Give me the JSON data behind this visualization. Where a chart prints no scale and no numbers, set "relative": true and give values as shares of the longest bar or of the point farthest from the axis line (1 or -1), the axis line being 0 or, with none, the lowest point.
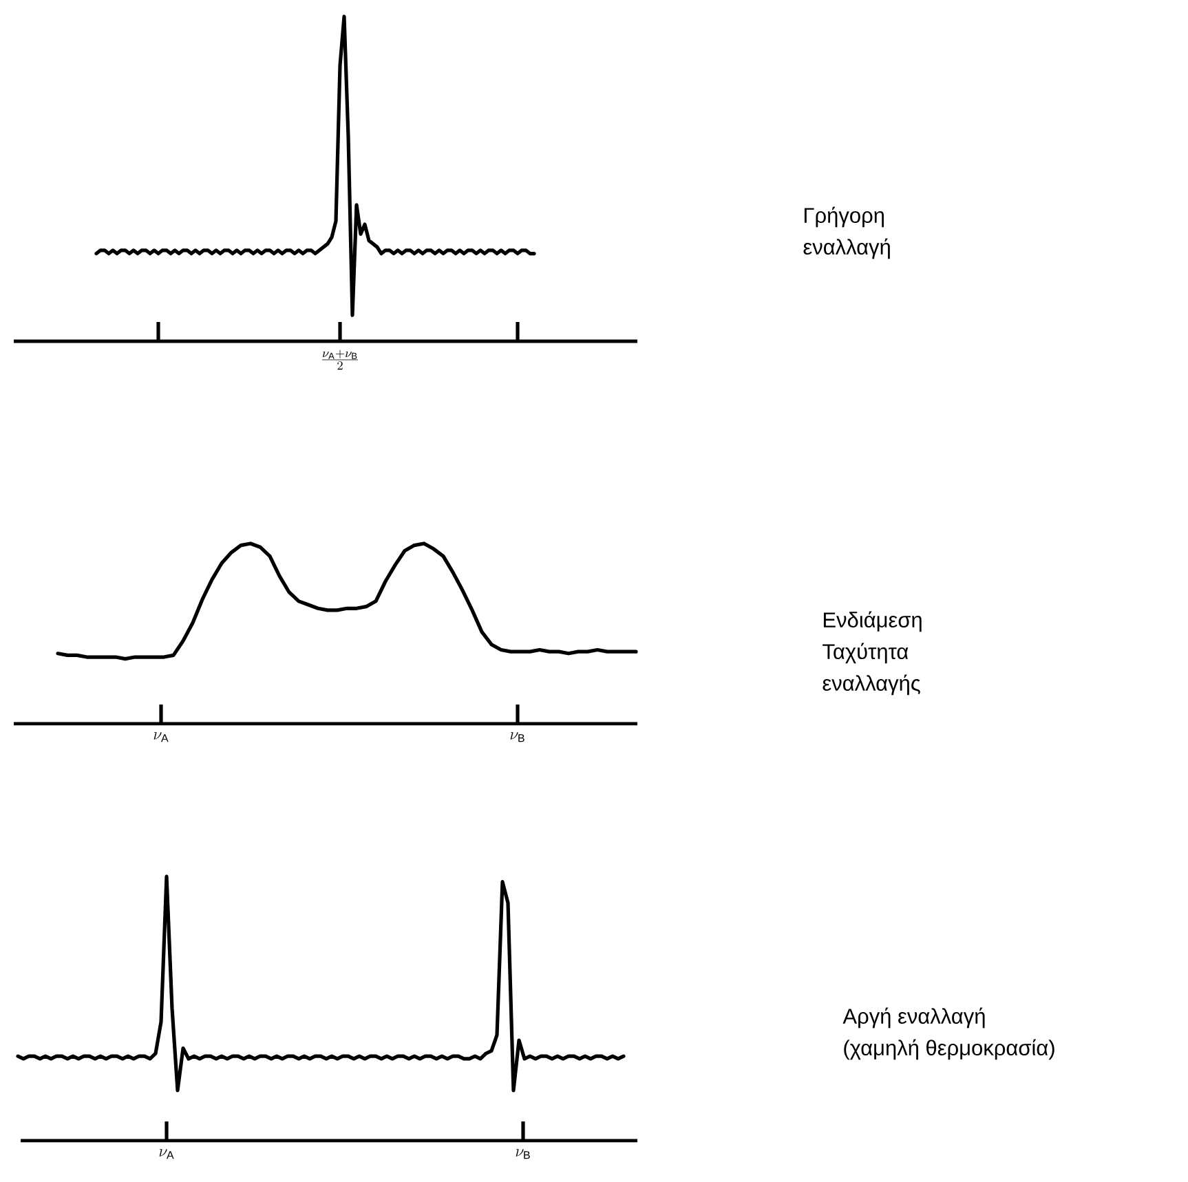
{
  "chart_data": [
    {
      "type": "line",
      "relative": true,
      "color": "#000000",
      "categories": [
        null,
        null,
        null,
        null,
        null,
        null,
        null,
        null,
        null,
        null,
        null,
        null,
        null,
        null,
        null,
        null,
        null,
        null,
        null,
        null,
        null,
        null,
        null,
        null,
        null,
        null,
        null,
        null,
        null,
        null,
        null,
        null,
        null,
        null,
        null,
        null,
        null,
        null,
        null,
        null,
        null,
        null,
        null,
        null,
        null,
        null,
        null,
        null,
        null,
        null,
        null,
        null,
        null,
        null,
        null,
        null,
        null,
        null,
        null,
        null,
        null,
        null,
        null,
        null,
        null,
        null,
        null,
        null,
        null,
        null,
        null,
        null,
        null,
        null,
        null,
        null,
        null,
        null,
        null,
        null,
        null,
        null,
        null,
        null,
        null,
        null,
        null,
        null,
        null,
        null,
        null,
        null,
        null,
        null,
        null,
        null,
        null,
        null,
        null,
        null,
        null,
        null,
        null,
        null,
        null,
        null,
        null
      ],
      "values": [
        0.27,
        0.28,
        0.28,
        0.27,
        0.28,
        0.27,
        0.28,
        0.28,
        0.27,
        0.28,
        0.27,
        0.28,
        0.28,
        0.27,
        0.28,
        0.27,
        0.28,
        0.28,
        0.27,
        0.28,
        0.27,
        0.28,
        0.28,
        0.27,
        0.28,
        0.27,
        0.28,
        0.28,
        0.27,
        0.28,
        0.27,
        0.28,
        0.28,
        0.27,
        0.28,
        0.27,
        0.28,
        0.28,
        0.27,
        0.28,
        0.27,
        0.28,
        0.28,
        0.27,
        0.28,
        0.27,
        0.28,
        0.28,
        0.27,
        0.28,
        0.27,
        0.28,
        0.28,
        0.27,
        0.28,
        0.29,
        0.3,
        0.32,
        0.37,
        0.85,
        1.0,
        0.63,
        0.08,
        0.42,
        0.33,
        0.36,
        0.31,
        0.3,
        0.29,
        0.27,
        0.28,
        0.28,
        0.27,
        0.28,
        0.27,
        0.28,
        0.28,
        0.27,
        0.28,
        0.27,
        0.28,
        0.28,
        0.27,
        0.28,
        0.27,
        0.28,
        0.28,
        0.27,
        0.28,
        0.27,
        0.28,
        0.28,
        0.27,
        0.28,
        0.27,
        0.28,
        0.28,
        0.27,
        0.28,
        0.27,
        0.28,
        0.28,
        0.27,
        0.28,
        0.28,
        0.27,
        0.27
      ],
      "annotations": [
        "\\frac{\\nu_{\\mathrm{A}} + \\nu_{\\mathrm{B}}}{2}",
        "Γρήγορη",
        "εναλλαγή"
      ]
    },
    {
      "type": "line",
      "relative": true,
      "color": "#000000",
      "categories": [
        null,
        null,
        null,
        null,
        null,
        null,
        null,
        null,
        null,
        null,
        null,
        null,
        null,
        null,
        null,
        null,
        null,
        null,
        null,
        null,
        null,
        null,
        null,
        null,
        null,
        null,
        null,
        null,
        null,
        null,
        null,
        null,
        null,
        null,
        null,
        null,
        null,
        null,
        null,
        null,
        null,
        null,
        null,
        null,
        null,
        null,
        null,
        null,
        null,
        null,
        null,
        null,
        null,
        null,
        null,
        null,
        null,
        null,
        null,
        null,
        null
      ],
      "values": [
        0.39,
        0.38,
        0.38,
        0.37,
        0.37,
        0.37,
        0.37,
        0.36,
        0.37,
        0.37,
        0.37,
        0.37,
        0.38,
        0.46,
        0.56,
        0.69,
        0.8,
        0.89,
        0.95,
        0.99,
        1.0,
        0.98,
        0.93,
        0.82,
        0.73,
        0.68,
        0.66,
        0.64,
        0.63,
        0.63,
        0.64,
        0.64,
        0.65,
        0.68,
        0.79,
        0.88,
        0.96,
        0.99,
        1.0,
        0.97,
        0.93,
        0.84,
        0.74,
        0.63,
        0.51,
        0.44,
        0.41,
        0.4,
        0.4,
        0.4,
        0.41,
        0.4,
        0.4,
        0.39,
        0.4,
        0.4,
        0.41,
        0.4,
        0.4,
        0.4,
        0.4
      ],
      "annotations": [
        "\\nu_{\\mathrm{A}}",
        "\\nu_{\\mathrm{B}}",
        "Ενδιάμεση",
        "Ταχύτητα",
        "εναλλαγής"
      ]
    },
    {
      "type": "line",
      "relative": true,
      "color": "#000000",
      "categories": [
        null,
        null,
        null,
        null,
        null,
        null,
        null,
        null,
        null,
        null,
        null,
        null,
        null,
        null,
        null,
        null,
        null,
        null,
        null,
        null,
        null,
        null,
        null,
        null,
        null,
        null,
        null,
        null,
        null,
        null,
        null,
        null,
        null,
        null,
        null,
        null,
        null,
        null,
        null,
        null,
        null,
        null,
        null,
        null,
        null,
        null,
        null,
        null,
        null,
        null,
        null,
        null,
        null,
        null,
        null,
        null,
        null,
        null,
        null,
        null,
        null,
        null,
        null,
        null,
        null,
        null,
        null,
        null,
        null,
        null,
        null,
        null,
        null,
        null,
        null,
        null,
        null,
        null,
        null,
        null,
        null,
        null,
        null,
        null,
        null,
        null,
        null,
        null,
        null,
        null,
        null,
        null,
        null,
        null,
        null,
        null,
        null,
        null,
        null,
        null,
        null,
        null,
        null,
        null,
        null,
        null,
        null,
        null,
        null,
        null,
        null
      ],
      "values": [
        0.32,
        0.31,
        0.32,
        0.32,
        0.31,
        0.32,
        0.31,
        0.32,
        0.32,
        0.31,
        0.32,
        0.31,
        0.32,
        0.32,
        0.31,
        0.32,
        0.31,
        0.32,
        0.32,
        0.31,
        0.32,
        0.31,
        0.32,
        0.32,
        0.31,
        0.33,
        0.45,
        1.0,
        0.5,
        0.19,
        0.35,
        0.31,
        0.32,
        0.31,
        0.32,
        0.32,
        0.31,
        0.32,
        0.31,
        0.32,
        0.32,
        0.31,
        0.32,
        0.31,
        0.32,
        0.32,
        0.31,
        0.32,
        0.31,
        0.32,
        0.32,
        0.31,
        0.32,
        0.31,
        0.32,
        0.32,
        0.31,
        0.32,
        0.31,
        0.32,
        0.32,
        0.31,
        0.32,
        0.31,
        0.32,
        0.32,
        0.31,
        0.32,
        0.31,
        0.32,
        0.32,
        0.31,
        0.32,
        0.31,
        0.32,
        0.32,
        0.31,
        0.32,
        0.31,
        0.32,
        0.32,
        0.31,
        0.31,
        0.32,
        0.31,
        0.33,
        0.34,
        0.4,
        0.98,
        0.9,
        0.19,
        0.38,
        0.31,
        0.32,
        0.31,
        0.32,
        0.32,
        0.31,
        0.32,
        0.31,
        0.32,
        0.32,
        0.31,
        0.32,
        0.31,
        0.32,
        0.32,
        0.31,
        0.32,
        0.31,
        0.32
      ],
      "annotations": [
        "\\nu_{\\mathrm{A}}",
        "\\nu_{\\mathrm{B}}",
        "Αργή εναλλαγή",
        "(χαμηλή θερμοκρασία)"
      ]
    }
  ]
}
